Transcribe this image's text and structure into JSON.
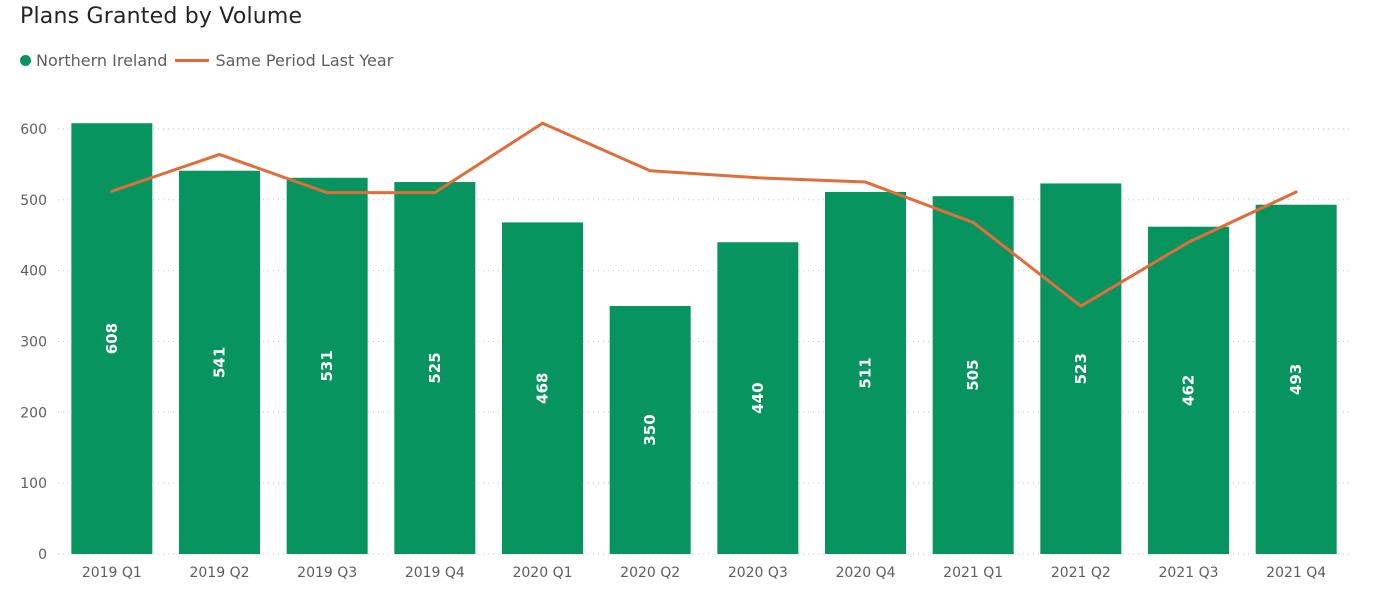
{
  "chart_data": {
    "type": "bar",
    "title": "Plans Granted by Volume",
    "categories": [
      "2019 Q1",
      "2019 Q2",
      "2019 Q3",
      "2019 Q4",
      "2020 Q1",
      "2020 Q2",
      "2020 Q3",
      "2020 Q4",
      "2021 Q1",
      "2021 Q2",
      "2021 Q3",
      "2021 Q4"
    ],
    "series": [
      {
        "name": "Northern Ireland",
        "type": "bar",
        "color": "#07945f",
        "values": [
          608,
          541,
          531,
          525,
          468,
          350,
          440,
          511,
          505,
          523,
          462,
          493
        ]
      },
      {
        "name": "Same Period Last Year",
        "type": "line",
        "color": "#e06e3c",
        "values": [
          512,
          564,
          510,
          510,
          608,
          541,
          531,
          525,
          468,
          350,
          440,
          511
        ]
      }
    ],
    "y_ticks": [
      0,
      100,
      200,
      300,
      400,
      500,
      600
    ],
    "ylim": [
      0,
      640
    ],
    "grid": true,
    "legend_position": "top-left",
    "data_labels": true
  }
}
